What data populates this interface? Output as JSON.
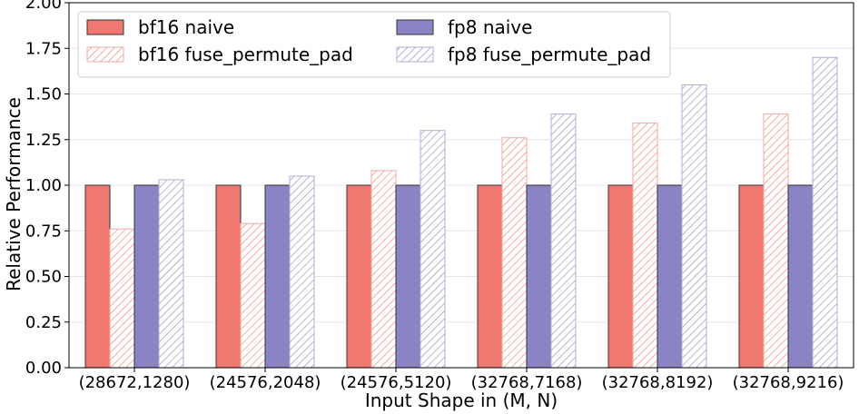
{
  "chart_data": {
    "type": "bar",
    "xlabel": "Input Shape in (M, N)",
    "ylabel": "Relative Performance",
    "categories": [
      "(28672,1280)",
      "(24576,2048)",
      "(24576,5120)",
      "(32768,7168)",
      "(32768,8192)",
      "(32768,9216)"
    ],
    "ylim": [
      0,
      2.0
    ],
    "yticks": [
      "0.00",
      "0.25",
      "0.50",
      "0.75",
      "1.00",
      "1.25",
      "1.50",
      "1.75",
      "2.00"
    ],
    "grid": true,
    "legend_position": "top-left",
    "series": [
      {
        "name": "bf16 naive",
        "values": [
          1.0,
          1.0,
          1.0,
          1.0,
          1.0,
          1.0
        ],
        "color": "#f07870",
        "pattern": "solid"
      },
      {
        "name": "bf16 fuse_permute_pad",
        "values": [
          0.76,
          0.79,
          1.08,
          1.26,
          1.34,
          1.39
        ],
        "color": "#f07870",
        "pattern": "hatch"
      },
      {
        "name": "fp8 naive",
        "values": [
          1.0,
          1.0,
          1.0,
          1.0,
          1.0,
          1.0
        ],
        "color": "#8a84c4",
        "pattern": "solid"
      },
      {
        "name": "fp8 fuse_permute_pad",
        "values": [
          1.03,
          1.05,
          1.3,
          1.39,
          1.55,
          1.7
        ],
        "color": "#8a84c4",
        "pattern": "hatch"
      }
    ]
  }
}
